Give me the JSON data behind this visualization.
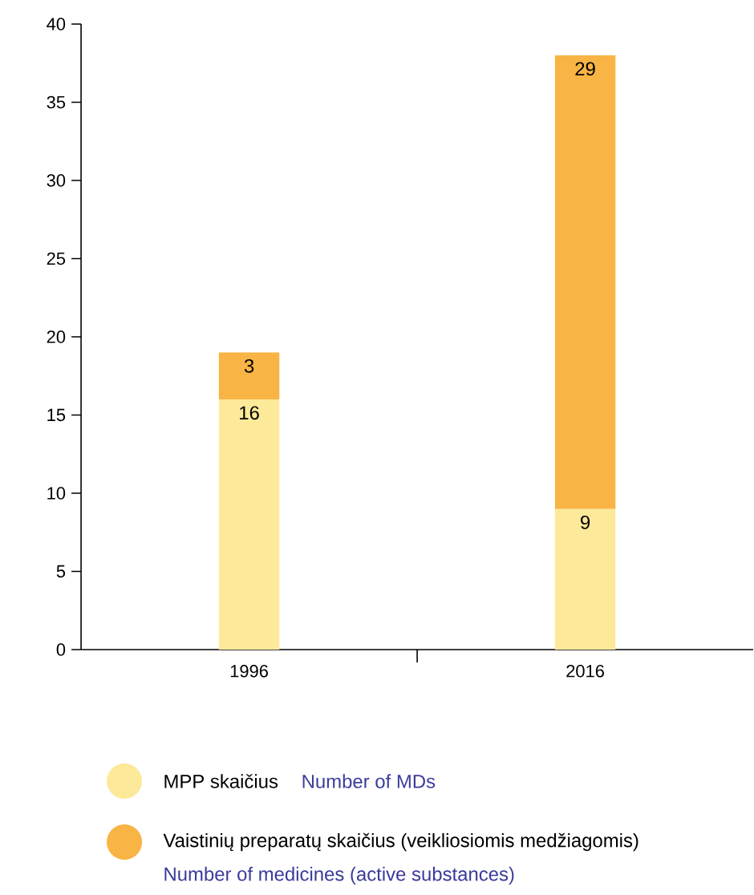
{
  "chart_data": {
    "type": "bar",
    "stacked": true,
    "categories": [
      "1996",
      "2016"
    ],
    "series": [
      {
        "name": "MPP skaičius",
        "color": "#fde99a",
        "values": [
          16,
          9
        ]
      },
      {
        "name": "Vaistinių preparatų skaičius (veikliosiomis medžiagomis)",
        "color": "#f8b444",
        "values": [
          3,
          29
        ]
      }
    ],
    "annotations": [
      "Number of MDs",
      "Number of medicines (active substances)"
    ],
    "ylim": [
      0,
      40
    ],
    "yticks": [
      0,
      5,
      10,
      15,
      20,
      25,
      30,
      35,
      40
    ],
    "data_labels": true,
    "legend": "bottom"
  }
}
